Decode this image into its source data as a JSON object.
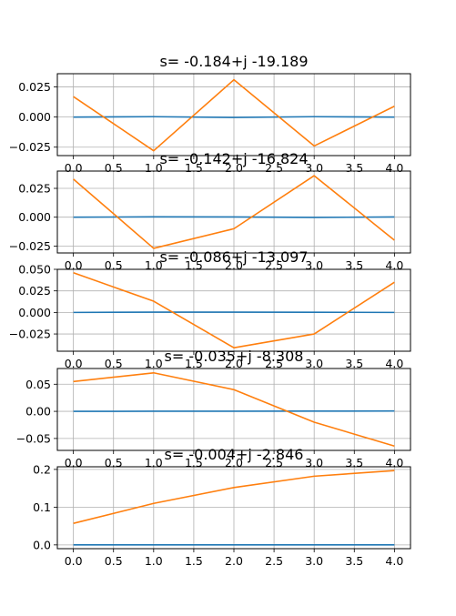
{
  "chart_data": [
    {
      "type": "line",
      "title": "s=  -0.184+j -19.189",
      "x": [
        0,
        1,
        2,
        3,
        4
      ],
      "series": [
        {
          "values": [
            0.0,
            0.0003,
            -0.0003,
            0.0003,
            0.0
          ],
          "color": "#1f77b4"
        },
        {
          "values": [
            0.017,
            -0.028,
            0.031,
            -0.024,
            0.009
          ],
          "color": "#ff7f0e"
        }
      ],
      "xlim": [
        -0.2,
        4.2
      ],
      "ylim": [
        -0.032,
        0.036
      ],
      "xticks": [
        "0.0",
        "0.5",
        "1.0",
        "1.5",
        "2.0",
        "2.5",
        "3.0",
        "3.5",
        "4.0"
      ],
      "yticks": [
        {
          "v": 0.025,
          "label": "0.025"
        },
        {
          "v": 0.0,
          "label": "0.000"
        },
        {
          "v": -0.025,
          "label": "−0.025"
        }
      ],
      "grid": true
    },
    {
      "type": "line",
      "title": "s=  -0.142+j -16.824",
      "x": [
        0,
        1,
        2,
        3,
        4
      ],
      "series": [
        {
          "values": [
            0.0,
            0.0003,
            0.0002,
            -0.0002,
            0.0002
          ],
          "color": "#1f77b4"
        },
        {
          "values": [
            0.033,
            -0.027,
            -0.01,
            0.036,
            -0.02
          ],
          "color": "#ff7f0e"
        }
      ],
      "xlim": [
        -0.2,
        4.2
      ],
      "ylim": [
        -0.031,
        0.04
      ],
      "xticks": [
        "0.0",
        "0.5",
        "1.0",
        "1.5",
        "2.0",
        "2.5",
        "3.0",
        "3.5",
        "4.0"
      ],
      "yticks": [
        {
          "v": 0.025,
          "label": "0.025"
        },
        {
          "v": 0.0,
          "label": "0.000"
        },
        {
          "v": -0.025,
          "label": "−0.025"
        }
      ],
      "grid": true
    },
    {
      "type": "line",
      "title": "s=  -0.086+j -13.097",
      "x": [
        0,
        1,
        2,
        3,
        4
      ],
      "series": [
        {
          "values": [
            0.0,
            0.0003,
            0.0003,
            0.0002,
            0.0
          ],
          "color": "#1f77b4"
        },
        {
          "values": [
            0.046,
            0.013,
            -0.041,
            -0.025,
            0.035
          ],
          "color": "#ff7f0e"
        }
      ],
      "xlim": [
        -0.2,
        4.2
      ],
      "ylim": [
        -0.045,
        0.05
      ],
      "xticks": [
        "0.0",
        "0.5",
        "1.0",
        "1.5",
        "2.0",
        "2.5",
        "3.0",
        "3.5",
        "4.0"
      ],
      "yticks": [
        {
          "v": 0.05,
          "label": "0.050"
        },
        {
          "v": 0.025,
          "label": "0.025"
        },
        {
          "v": 0.0,
          "label": "0.000"
        },
        {
          "v": -0.025,
          "label": "−0.025"
        }
      ],
      "grid": true
    },
    {
      "type": "line",
      "title": "s=  -0.035+j  -8.308",
      "x": [
        0,
        1,
        2,
        3,
        4
      ],
      "series": [
        {
          "values": [
            0.0,
            0.0002,
            0.0003,
            0.0004,
            0.0006
          ],
          "color": "#1f77b4"
        },
        {
          "values": [
            0.055,
            0.071,
            0.04,
            -0.02,
            -0.064
          ],
          "color": "#ff7f0e"
        }
      ],
      "xlim": [
        -0.2,
        4.2
      ],
      "ylim": [
        -0.072,
        0.079
      ],
      "xticks": [
        "0.0",
        "0.5",
        "1.0",
        "1.5",
        "2.0",
        "2.5",
        "3.0",
        "3.5",
        "4.0"
      ],
      "yticks": [
        {
          "v": 0.05,
          "label": "0.05"
        },
        {
          "v": 0.0,
          "label": "0.00"
        },
        {
          "v": -0.05,
          "label": "−0.05"
        }
      ],
      "grid": true
    },
    {
      "type": "line",
      "title": "s=  -0.004+j  -2.846",
      "x": [
        0,
        1,
        2,
        3,
        4
      ],
      "series": [
        {
          "values": [
            0.0,
            0.0,
            0.0,
            0.0,
            0.0
          ],
          "color": "#1f77b4"
        },
        {
          "values": [
            0.057,
            0.11,
            0.152,
            0.182,
            0.197
          ],
          "color": "#ff7f0e"
        }
      ],
      "xlim": [
        -0.2,
        4.2
      ],
      "ylim": [
        -0.01,
        0.207
      ],
      "xticks": [
        "0.0",
        "0.5",
        "1.0",
        "1.5",
        "2.0",
        "2.5",
        "3.0",
        "3.5",
        "4.0"
      ],
      "yticks": [
        {
          "v": 0.2,
          "label": "0.2"
        },
        {
          "v": 0.1,
          "label": "0.1"
        },
        {
          "v": 0.0,
          "label": "0.0"
        }
      ],
      "grid": true
    }
  ]
}
